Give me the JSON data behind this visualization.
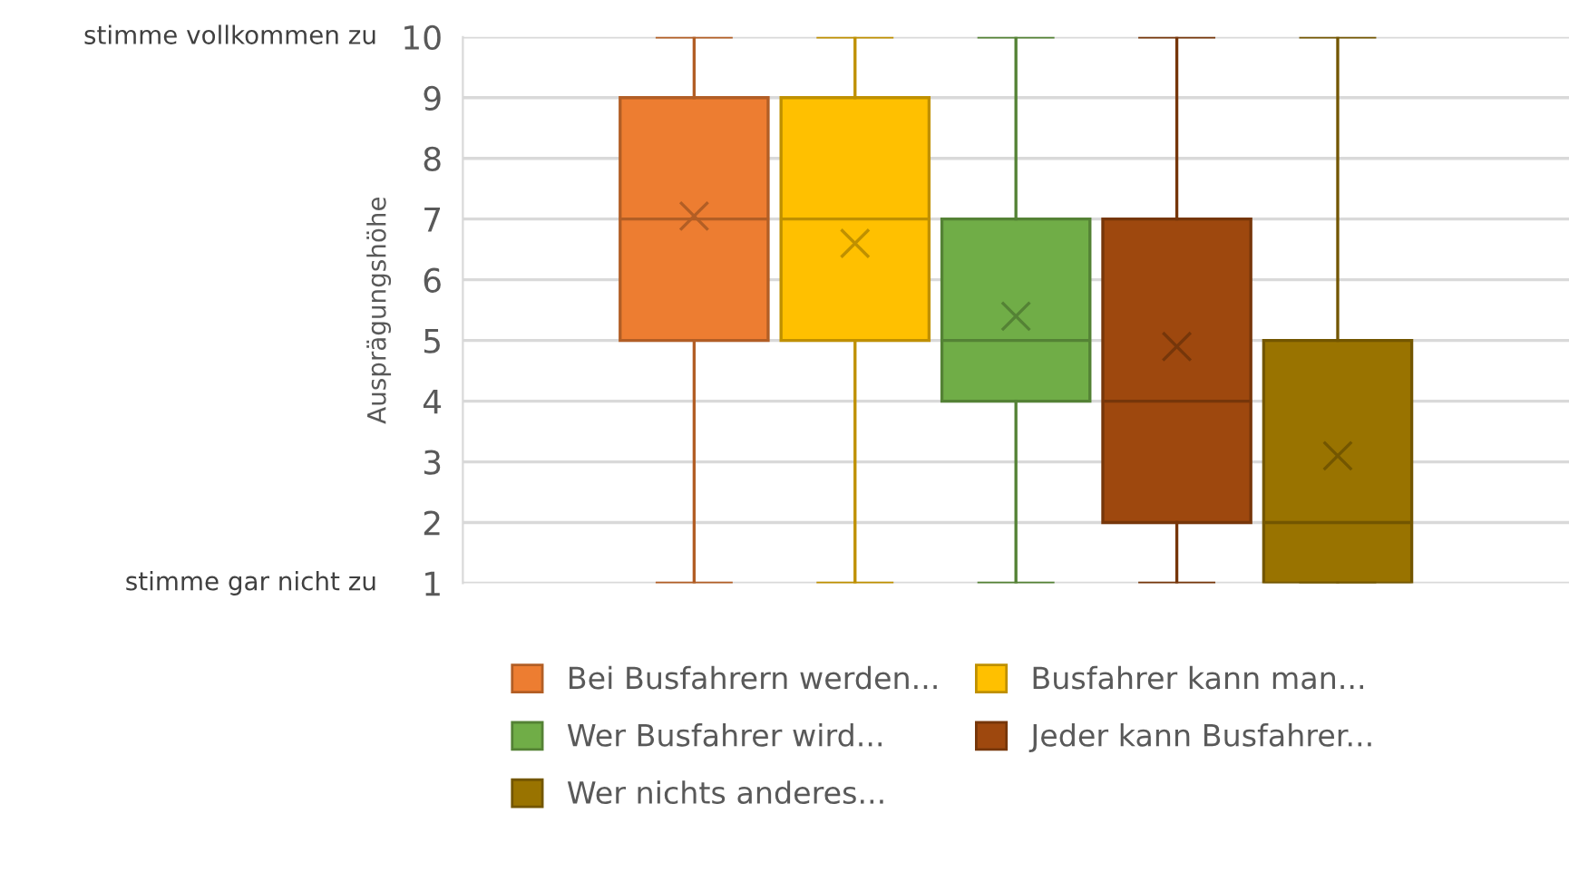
{
  "chart_data": {
    "type": "box",
    "ylabel": "Ausprägungshöhe",
    "categories": [
      null
    ],
    "ylim": [
      1,
      10
    ],
    "yticks": [
      1,
      2,
      3,
      4,
      5,
      6,
      7,
      8,
      9,
      10
    ],
    "grid": "y",
    "legend": "bottom",
    "marker": "cross",
    "annotations": [
      "stimme vollkommen zu",
      "stimme gar nicht zu"
    ],
    "series": [
      {
        "name": "Bei Busfahrern werden...",
        "color": "#ed7d31",
        "boxes": [
          {
            "low": 1,
            "q1": 5,
            "median": 7,
            "q3": 9,
            "high": 10,
            "mean": 7.05
          }
        ]
      },
      {
        "name": "Busfahrer kann man...",
        "color": "#ffc000",
        "boxes": [
          {
            "low": 1,
            "q1": 5,
            "median": 7,
            "q3": 9,
            "high": 10,
            "mean": 6.6
          }
        ]
      },
      {
        "name": "Wer Busfahrer wird...",
        "color": "#70ad47",
        "boxes": [
          {
            "low": 1,
            "q1": 4,
            "median": 5,
            "q3": 7,
            "high": 10,
            "mean": 5.4
          }
        ]
      },
      {
        "name": "Jeder kann Busfahrer...",
        "color": "#9e480e",
        "boxes": [
          {
            "low": 1,
            "q1": 2,
            "median": 4,
            "q3": 7,
            "high": 10,
            "mean": 4.9
          }
        ]
      },
      {
        "name": "Wer nichts anderes...",
        "color": "#997300",
        "boxes": [
          {
            "low": 1,
            "q1": 1,
            "median": 2,
            "q3": 5,
            "high": 10,
            "mean": 3.1
          }
        ]
      }
    ]
  }
}
